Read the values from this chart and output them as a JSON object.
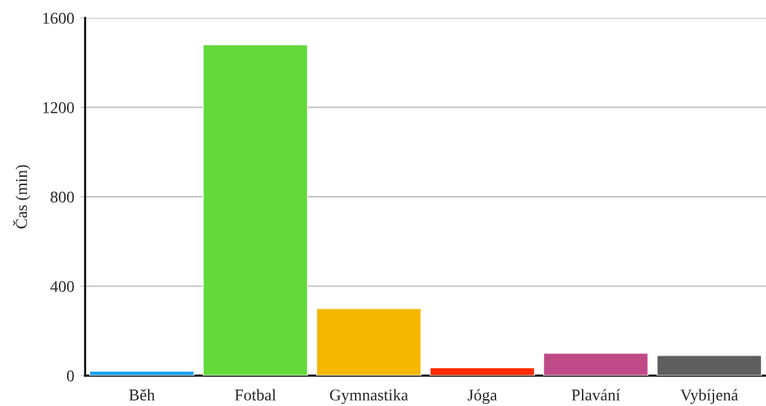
{
  "chart_data": {
    "type": "bar",
    "ylabel": "Čas (min)",
    "categories": [
      "Běh",
      "Fotbal",
      "Gymnastika",
      "Jóga",
      "Plavání",
      "Vybíjená"
    ],
    "values": [
      20,
      1480,
      300,
      35,
      100,
      90
    ],
    "colors": [
      "#1a9ff0",
      "#63d93a",
      "#f5b800",
      "#ff2a00",
      "#c04a88",
      "#5f5f5f"
    ],
    "ylim": [
      0,
      1600
    ],
    "yticks": [
      0,
      400,
      800,
      1200,
      1600
    ],
    "grid": "y"
  }
}
